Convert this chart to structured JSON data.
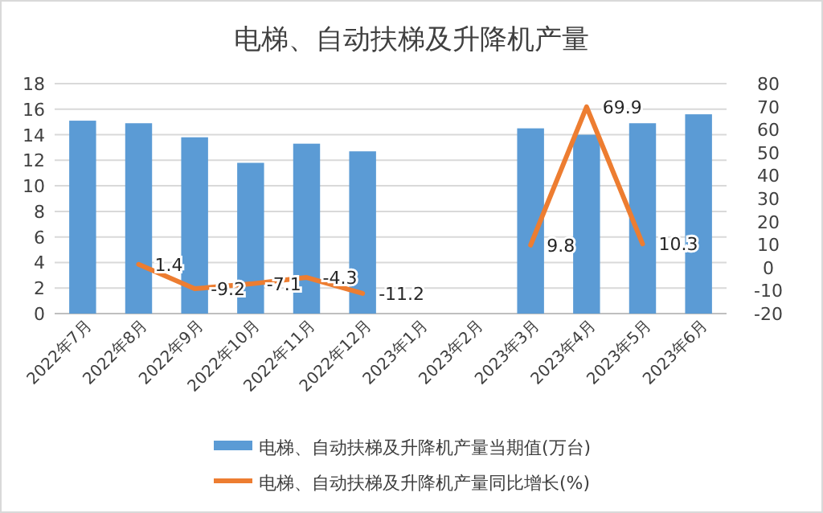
{
  "chart_data": {
    "type": "bar",
    "title": "电梯、自动扶梯及升降机产量",
    "categories": [
      "2022年7月",
      "2022年8月",
      "2022年9月",
      "2022年10月",
      "2022年11月",
      "2022年12月",
      "2023年1月",
      "2023年2月",
      "2023年3月",
      "2023年4月",
      "2023年5月",
      "2023年6月"
    ],
    "series": [
      {
        "name": "电梯、自动扶梯及升降机产量当期值(万台)",
        "type": "bar",
        "color": "#5b9bd5",
        "values": [
          15.1,
          14.9,
          13.8,
          11.8,
          13.3,
          12.7,
          null,
          null,
          14.5,
          14.0,
          14.9,
          15.6
        ]
      },
      {
        "name": "电梯、自动扶梯及升降机产量同比增长(%)",
        "type": "line",
        "axis": "y2",
        "color": "#ed7d31",
        "data_labels": true,
        "values": [
          null,
          1.4,
          -9.2,
          -7.1,
          -4.3,
          -11.2,
          null,
          null,
          9.8,
          69.9,
          10.3,
          null
        ]
      }
    ],
    "ylim": [
      0,
      18
    ],
    "yticks": [
      0,
      2,
      4,
      6,
      8,
      10,
      12,
      14,
      16,
      18
    ],
    "y2lim": [
      -20,
      80
    ],
    "y2ticks": [
      -20,
      -10,
      0,
      10,
      20,
      30,
      40,
      50,
      60,
      70,
      80
    ],
    "grid": "y",
    "legend": "bottom"
  }
}
